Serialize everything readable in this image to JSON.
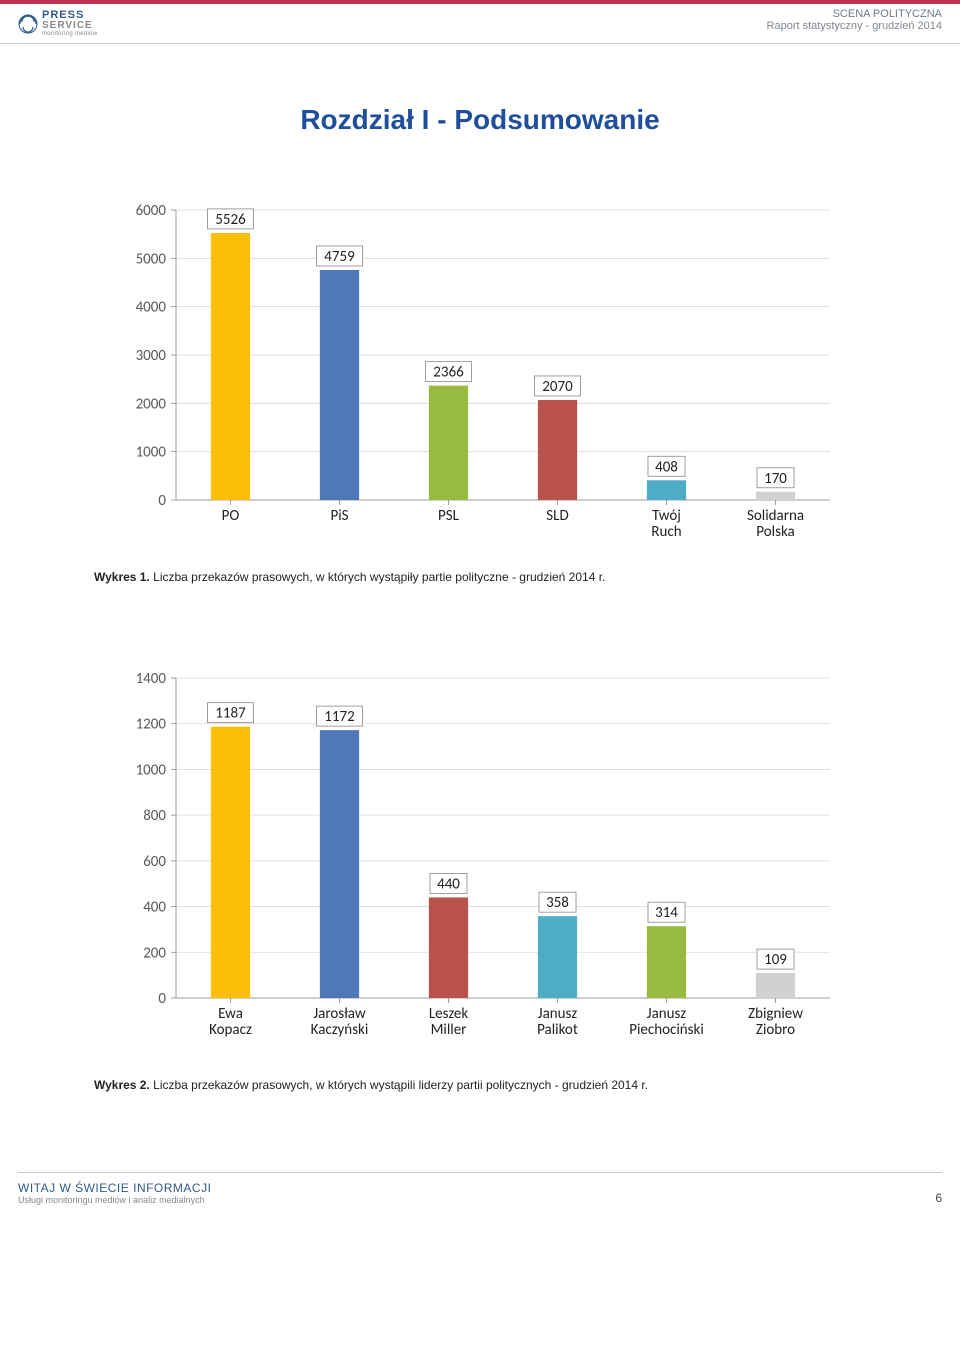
{
  "header": {
    "logo": {
      "line1": "PRESS",
      "line2": "SERVICE",
      "line3": "monitoring mediów"
    },
    "title": "SCENA POLITYCZNA",
    "subtitle": "Raport statystyczny - grudzień 2014"
  },
  "page_title": "Rozdział I - Podsumowanie",
  "chart1": {
    "type": "bar",
    "ylim": [
      0,
      6000
    ],
    "ytick_step": 1000,
    "grid_color": "#d9d9d9",
    "axis_color": "#888888",
    "label_fontsize": 15,
    "background_color": "#ffffff",
    "bar_width": 0.36,
    "categories": [
      "PO",
      "PiS",
      "PSL",
      "SLD",
      "Twój Ruch",
      "Solidarna Polska"
    ],
    "values": [
      5526,
      4759,
      2366,
      2070,
      408,
      170
    ],
    "bar_colors": [
      "#fcbf08",
      "#4f78b9",
      "#96bb3f",
      "#b9524a",
      "#4eacc6",
      "#d1d1d1"
    ]
  },
  "caption1": {
    "prefix": "Wykres 1.",
    "text": " Liczba przekazów prasowych, w których wystąpiły partie polityczne - grudzień 2014 r."
  },
  "chart2": {
    "type": "bar",
    "ylim": [
      0,
      1400
    ],
    "ytick_step": 200,
    "grid_color": "#d9d9d9",
    "axis_color": "#888888",
    "label_fontsize": 15,
    "background_color": "#ffffff",
    "bar_width": 0.36,
    "categories": [
      "Ewa Kopacz",
      "Jarosław Kaczyński",
      "Leszek Miller",
      "Janusz Palikot",
      "Janusz Piechociński",
      "Zbigniew Ziobro"
    ],
    "values": [
      1187,
      1172,
      440,
      358,
      314,
      109
    ],
    "bar_colors": [
      "#fcbf08",
      "#4f78b9",
      "#b9524a",
      "#4eacc6",
      "#96bb3f",
      "#d1d1d1"
    ]
  },
  "caption2": {
    "prefix": "Wykres 2.",
    "text": " Liczba przekazów prasowych, w których wystąpili liderzy partii politycznych - grudzień 2014 r."
  },
  "footer": {
    "line1": "WITAJ W ŚWIECIE INFORMACJI",
    "line2": "Usługi monitoringu mediów i analiz medialnych",
    "page": "6"
  }
}
